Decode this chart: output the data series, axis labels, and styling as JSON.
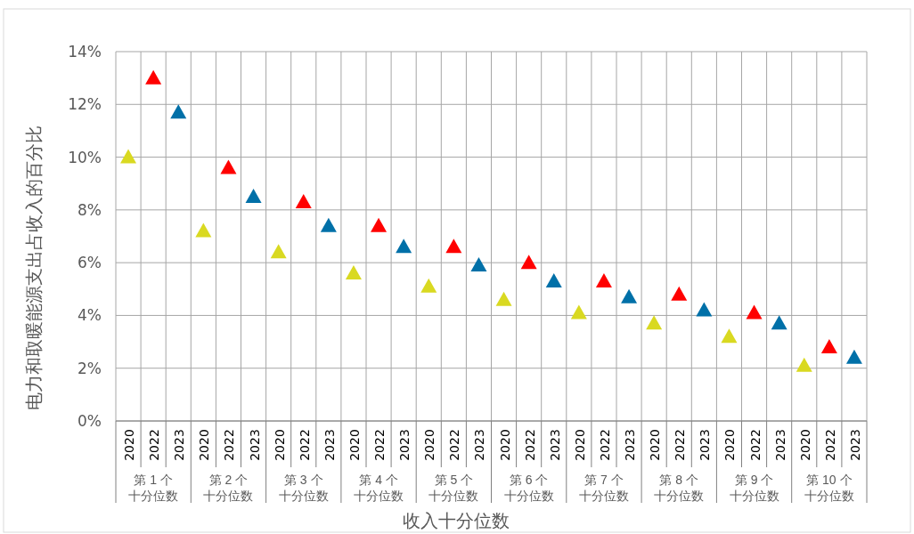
{
  "chart_data": {
    "type": "scatter",
    "xlabel": "收入十分位数",
    "ylabel": "电力和取暖能源支出占收入的百分比",
    "categories": [
      "2020",
      "2022",
      "2023",
      "2020",
      "2022",
      "2023",
      "2020",
      "2022",
      "2023",
      "2020",
      "2022",
      "2023",
      "2020",
      "2022",
      "2023",
      "2020",
      "2022",
      "2023",
      "2020",
      "2022",
      "2023",
      "2020",
      "2022",
      "2023",
      "2020",
      "2022",
      "2023",
      "2020",
      "2022",
      "2023"
    ],
    "values": [
      10.0,
      13.0,
      11.7,
      7.2,
      9.6,
      8.5,
      6.4,
      8.3,
      7.4,
      5.6,
      7.4,
      6.6,
      5.1,
      6.6,
      5.9,
      4.6,
      6.0,
      5.3,
      4.1,
      5.3,
      4.7,
      3.7,
      4.8,
      4.2,
      3.2,
      4.1,
      3.7,
      2.1,
      2.8,
      2.4
    ],
    "colors": [
      "#d9d921",
      "#ff0000",
      "#0070a8",
      "#d9d921",
      "#ff0000",
      "#0070a8",
      "#d9d921",
      "#ff0000",
      "#0070a8",
      "#d9d921",
      "#ff0000",
      "#0070a8",
      "#d9d921",
      "#ff0000",
      "#0070a8",
      "#d9d921",
      "#ff0000",
      "#0070a8",
      "#d9d921",
      "#ff0000",
      "#0070a8",
      "#d9d921",
      "#ff0000",
      "#0070a8",
      "#d9d921",
      "#ff0000",
      "#0070a8",
      "#d9d921",
      "#ff0000",
      "#0070a8"
    ],
    "marker": "triangle",
    "ylim": [
      0,
      14
    ],
    "yticks": [
      {
        "value": 0,
        "label": "0%"
      },
      {
        "value": 2,
        "label": "2%"
      },
      {
        "value": 4,
        "label": "4%"
      },
      {
        "value": 6,
        "label": "6%"
      },
      {
        "value": 8,
        "label": "8%"
      },
      {
        "value": 10,
        "label": "10%"
      },
      {
        "value": 12,
        "label": "12%"
      },
      {
        "value": 14,
        "label": "14%"
      }
    ],
    "grid": true,
    "annotations": [
      "第 1 个十分位数",
      "第 2 个十分位数",
      "第 3 个十分位数",
      "第 4 个十分位数",
      "第 5 个十分位数",
      "第 6 个十分位数",
      "第 7 个十分位数",
      "第 8 个十分位数",
      "第 9 个十分位数",
      "第 10 个十分位数"
    ]
  }
}
